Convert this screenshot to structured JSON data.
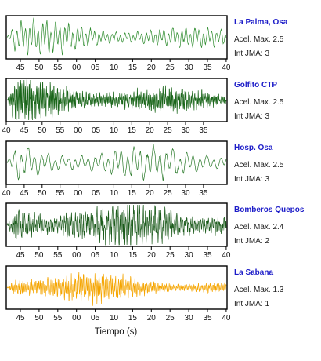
{
  "chart_data": {
    "type": "line",
    "xlabel": "Tiempo (s)",
    "panels": [
      {
        "station": "La Palma, Osa",
        "accel_label": "Acel. Max.",
        "accel_value": "2.5",
        "int_label": "Int JMA:",
        "int_value": "3",
        "color": "#2a8a2a",
        "tick_labels": [
          "45",
          "50",
          "55",
          "00",
          "05",
          "10",
          "15",
          "20",
          "25",
          "30",
          "35",
          "40"
        ]
      },
      {
        "station": "Golfito CTP",
        "accel_label": "Acel. Max.",
        "accel_value": "2.5",
        "int_label": "Int JMA:",
        "int_value": "3",
        "color": "#1a661a",
        "tick_labels": [
          "40",
          "45",
          "50",
          "55",
          "00",
          "05",
          "10",
          "15",
          "20",
          "25",
          "30",
          "35"
        ]
      },
      {
        "station": "Hosp. Osa",
        "accel_label": "Acel. Max.",
        "accel_value": "2.5",
        "int_label": "Int JMA:",
        "int_value": "3",
        "color": "#2a7a2a",
        "tick_labels": [
          "40",
          "45",
          "50",
          "55",
          "00",
          "05",
          "10",
          "15",
          "20",
          "25",
          "30",
          "35"
        ]
      },
      {
        "station": "Bomberos Quepos",
        "accel_label": "Acel. Max.",
        "accel_value": "2.4",
        "int_label": "Int JMA:",
        "int_value": "2",
        "color": "#1a5a1a",
        "tick_labels": [
          "45",
          "50",
          "55",
          "00",
          "05",
          "10",
          "15",
          "20",
          "25",
          "30",
          "35",
          "40"
        ]
      },
      {
        "station": "La Sabana",
        "accel_label": "Acel. Max.",
        "accel_value": "1.3",
        "int_label": "Int JMA:",
        "int_value": "1",
        "color": "#f5a500",
        "tick_labels": [
          "45",
          "50",
          "55",
          "00",
          "05",
          "10",
          "15",
          "20",
          "25",
          "30",
          "35",
          "40"
        ]
      }
    ]
  }
}
